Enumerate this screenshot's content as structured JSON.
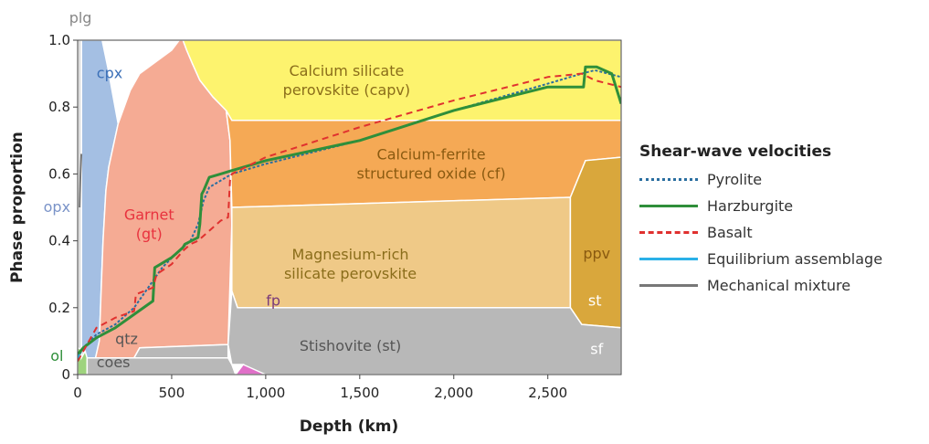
{
  "chart_data": {
    "type": "area",
    "xlabel": "Depth (km)",
    "ylabel": "Phase proportion",
    "xlim": [
      0,
      2890
    ],
    "ylim": [
      0,
      1.0
    ],
    "x_ticks": [
      0,
      500,
      1000,
      1500,
      2000,
      2500
    ],
    "x_tick_labels": [
      "0",
      "500",
      "1,000",
      "1,500",
      "2,000",
      "2,500"
    ],
    "y_ticks": [
      0,
      0.2,
      0.4,
      0.6,
      0.8,
      1.0
    ],
    "y_tick_labels": [
      "0",
      "0.2",
      "0.4",
      "0.6",
      "0.8",
      "1.0"
    ],
    "regions": [
      {
        "key": "cpx",
        "label": "cpx",
        "label_color": "#3a6fb7",
        "fill": "#a4bfe3",
        "label_at": [
          170,
          0.9
        ],
        "polygon": [
          [
            20,
            0
          ],
          [
            20,
            1
          ],
          [
            130,
            1
          ],
          [
            160,
            0.92
          ],
          [
            215,
            0.75
          ],
          [
            165,
            0.62
          ],
          [
            150,
            0.55
          ],
          [
            135,
            0.4
          ],
          [
            125,
            0.25
          ],
          [
            115,
            0.1
          ],
          [
            95,
            0.05
          ],
          [
            20,
            0.05
          ]
        ]
      },
      {
        "key": "gt",
        "label_lines": [
          "Garnet",
          "(gt)"
        ],
        "label_color": "#e8323e",
        "fill": "#f5ab94",
        "label_at": [
          380,
          0.45
        ],
        "polygon": [
          [
            95,
            0.05
          ],
          [
            115,
            0.1
          ],
          [
            125,
            0.25
          ],
          [
            135,
            0.4
          ],
          [
            150,
            0.55
          ],
          [
            165,
            0.62
          ],
          [
            215,
            0.75
          ],
          [
            280,
            0.85
          ],
          [
            330,
            0.9
          ],
          [
            500,
            0.97
          ],
          [
            540,
            1
          ],
          [
            560,
            1
          ],
          [
            580,
            0.97
          ],
          [
            610,
            0.93
          ],
          [
            650,
            0.88
          ],
          [
            720,
            0.83
          ],
          [
            790,
            0.79
          ],
          [
            810,
            0.7
          ],
          [
            820,
            0.45
          ],
          [
            800,
            0.09
          ],
          [
            330,
            0.08
          ],
          [
            300,
            0.05
          ]
        ]
      },
      {
        "key": "capv",
        "label_lines": [
          "Calcium silicate",
          "perovskite (capv)"
        ],
        "label_color": "#8a6d1a",
        "fill": "#fdf36e",
        "label_at": [
          1430,
          0.88
        ],
        "polygon": [
          [
            560,
            1
          ],
          [
            2890,
            1
          ],
          [
            2890,
            0.76
          ],
          [
            820,
            0.76
          ],
          [
            790,
            0.79
          ],
          [
            720,
            0.83
          ],
          [
            650,
            0.88
          ],
          [
            610,
            0.93
          ],
          [
            580,
            0.97
          ]
        ]
      },
      {
        "key": "cf",
        "label_lines": [
          "Calcium-ferrite",
          "structured oxide (cf)"
        ],
        "label_color": "#8a5a10",
        "fill": "#f5a955",
        "label_at": [
          1880,
          0.63
        ],
        "polygon": [
          [
            790,
            0.79
          ],
          [
            820,
            0.76
          ],
          [
            2890,
            0.76
          ],
          [
            2890,
            0.65
          ],
          [
            2700,
            0.64
          ],
          [
            2620,
            0.53
          ],
          [
            820,
            0.5
          ],
          [
            810,
            0.7
          ]
        ]
      },
      {
        "key": "mgpv",
        "label_lines": [
          "Magnesium-rich",
          "silicate perovskite"
        ],
        "label_color": "#8a6d1a",
        "fill": "#efc987",
        "label_at": [
          1450,
          0.33
        ],
        "polygon": [
          [
            820,
            0.5
          ],
          [
            2620,
            0.53
          ],
          [
            2620,
            0.2
          ],
          [
            850,
            0.2
          ],
          [
            820,
            0.25
          ]
        ]
      },
      {
        "key": "ppv",
        "label": "ppv",
        "label_color": "#8a5a10",
        "fill": "#d9a73c",
        "label_at": [
          2760,
          0.36
        ],
        "polygon": [
          [
            2620,
            0.53
          ],
          [
            2700,
            0.64
          ],
          [
            2890,
            0.65
          ],
          [
            2890,
            0.14
          ],
          [
            2680,
            0.15
          ],
          [
            2620,
            0.2
          ]
        ]
      },
      {
        "key": "st",
        "label": "Stishovite (st)",
        "label_color": "#555555",
        "fill": "#b8b8b8",
        "label_at": [
          1450,
          0.085
        ],
        "polygon": [
          [
            800,
            0.09
          ],
          [
            820,
            0.25
          ],
          [
            850,
            0.2
          ],
          [
            2620,
            0.2
          ],
          [
            2680,
            0.15
          ],
          [
            2890,
            0.14
          ],
          [
            2890,
            0
          ],
          [
            840,
            0
          ],
          [
            880,
            0.03
          ],
          [
            820,
            0.03
          ]
        ]
      },
      {
        "key": "qtz",
        "label": "qtz",
        "label_color": "#555555",
        "fill": "#b8b8b8",
        "label_at": [
          260,
          0.105
        ],
        "polygon": [
          [
            95,
            0.05
          ],
          [
            300,
            0.05
          ],
          [
            330,
            0.08
          ],
          [
            800,
            0.09
          ],
          [
            800,
            0.05
          ],
          [
            95,
            0.04
          ]
        ]
      },
      {
        "key": "coes",
        "label": "coes",
        "label_color": "#555555",
        "fill": "#b8b8b8",
        "label_at": [
          190,
          0.035
        ],
        "polygon": [
          [
            50,
            0
          ],
          [
            50,
            0.05
          ],
          [
            800,
            0.05
          ],
          [
            820,
            0.03
          ],
          [
            840,
            0
          ]
        ]
      },
      {
        "key": "fp",
        "label": "fp",
        "label_color": "#7a3b7a",
        "fill": "#e070c8",
        "label_at": [
          1040,
          0.22
        ],
        "polygon": [
          [
            840,
            0
          ],
          [
            880,
            0.03
          ],
          [
            1000,
            0
          ]
        ]
      },
      {
        "key": "ol",
        "label": "ol",
        "label_color": "#2f8f3a",
        "fill": "#9ed37d",
        "label_at": [
          -110,
          0.055
        ],
        "polygon": [
          [
            0,
            0
          ],
          [
            0,
            0.08
          ],
          [
            40,
            0.07
          ],
          [
            50,
            0.05
          ],
          [
            50,
            0
          ]
        ]
      },
      {
        "key": "plg",
        "label": "plg",
        "label_color": "#888888",
        "fill": "#dddddd",
        "label_at": [
          15,
          1.065
        ],
        "polygon": [
          [
            0,
            0.08
          ],
          [
            0,
            1
          ],
          [
            20,
            1
          ],
          [
            20,
            0.05
          ],
          [
            40,
            0.07
          ]
        ]
      }
    ],
    "side_labels": [
      {
        "key": "opx",
        "label": "opx",
        "color": "#7a93c8",
        "x": -110,
        "y": 0.5
      },
      {
        "key": "st2",
        "label": "st",
        "color": "#ffffff",
        "x": 2750,
        "y": 0.22
      },
      {
        "key": "sf",
        "label": "sf",
        "color": "#ffffff",
        "x": 2760,
        "y": 0.075
      }
    ],
    "series": [
      {
        "name": "Pyrolite",
        "color": "#2a6ea0",
        "dash": "3 2",
        "width": 2,
        "x": [
          0,
          30,
          100,
          200,
          300,
          400,
          450,
          520,
          600,
          640,
          670,
          700,
          760,
          820,
          1000,
          1500,
          2000,
          2500,
          2680,
          2750,
          2890
        ],
        "y": [
          0.05,
          0.08,
          0.12,
          0.15,
          0.2,
          0.28,
          0.32,
          0.36,
          0.4,
          0.45,
          0.52,
          0.56,
          0.58,
          0.6,
          0.63,
          0.7,
          0.79,
          0.87,
          0.9,
          0.91,
          0.89
        ]
      },
      {
        "name": "Harzburgite",
        "color": "#2f8f3a",
        "dash": "",
        "width": 3,
        "x": [
          0,
          30,
          100,
          200,
          300,
          400,
          410,
          500,
          520,
          560,
          570,
          640,
          650,
          660,
          670,
          700,
          760,
          820,
          1000,
          1500,
          2000,
          2500,
          2660,
          2690,
          2700,
          2760,
          2840,
          2890
        ],
        "y": [
          0.06,
          0.08,
          0.11,
          0.14,
          0.18,
          0.22,
          0.32,
          0.35,
          0.36,
          0.38,
          0.39,
          0.41,
          0.45,
          0.54,
          0.55,
          0.59,
          0.6,
          0.61,
          0.64,
          0.7,
          0.79,
          0.86,
          0.86,
          0.86,
          0.92,
          0.92,
          0.9,
          0.81
        ]
      },
      {
        "name": "Basalt",
        "color": "#e0312f",
        "dash": "7 5",
        "width": 2,
        "x": [
          0,
          30,
          100,
          200,
          300,
          310,
          400,
          420,
          500,
          560,
          600,
          640,
          660,
          700,
          760,
          800,
          810,
          820,
          1000,
          1500,
          2000,
          2500,
          2680,
          2750,
          2890
        ],
        "y": [
          0.04,
          0.07,
          0.14,
          0.17,
          0.19,
          0.24,
          0.26,
          0.3,
          0.33,
          0.37,
          0.39,
          0.4,
          0.41,
          0.43,
          0.46,
          0.47,
          0.58,
          0.6,
          0.65,
          0.74,
          0.82,
          0.89,
          0.9,
          0.88,
          0.86
        ]
      },
      {
        "name": "Equilibrium assemblage",
        "color": "#2ab0e8",
        "dash": "",
        "width": 2,
        "x": [
          0,
          10
        ],
        "y": [
          0.05,
          0.06
        ]
      },
      {
        "name": "Mechanical mixture",
        "color": "#777777",
        "dash": "",
        "width": 2,
        "x": [
          10,
          15,
          20
        ],
        "y": [
          0.5,
          0.6,
          0.66
        ]
      }
    ],
    "legend": {
      "title": "Shear-wave velocities",
      "placement": "right",
      "entries": [
        {
          "label": "Pyrolite",
          "color": "#2a6ea0",
          "style": "dotted"
        },
        {
          "label": "Harzburgite",
          "color": "#2f8f3a",
          "style": "solid"
        },
        {
          "label": "Basalt",
          "color": "#e0312f",
          "style": "dashed"
        },
        {
          "label": "Equilibrium assemblage",
          "color": "#2ab0e8",
          "style": "solid"
        },
        {
          "label": "Mechanical mixture",
          "color": "#777777",
          "style": "solid"
        }
      ]
    }
  }
}
